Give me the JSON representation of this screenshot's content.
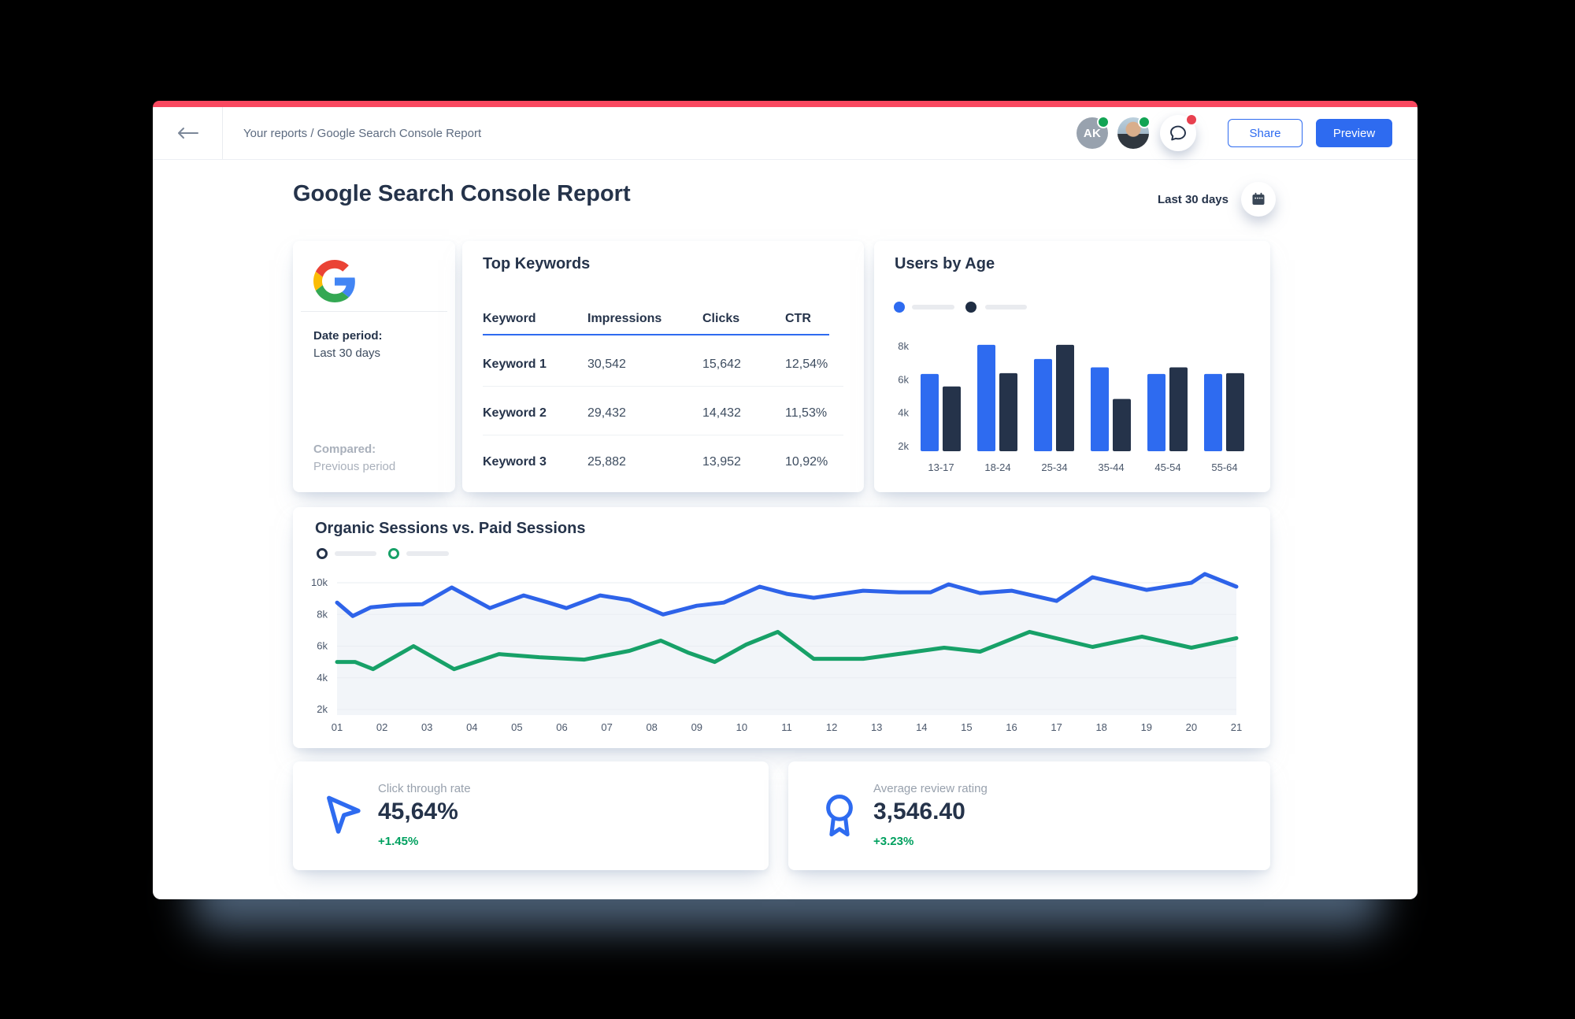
{
  "header": {
    "breadcrumb": "Your reports / Google Search Console Report",
    "avatars": [
      {
        "type": "initials",
        "initials": "AK",
        "status": "online"
      },
      {
        "type": "photo",
        "status": "online"
      }
    ],
    "chat_badge": "unread",
    "share_label": "Share",
    "preview_label": "Preview"
  },
  "page": {
    "title": "Google Search Console Report",
    "date_range_label": "Last 30 days"
  },
  "source_card": {
    "source": "Google",
    "date_period_label": "Date period:",
    "date_period_value": "Last 30 days",
    "compared_label": "Compared:",
    "compared_value": "Previous period"
  },
  "top_keywords": {
    "title": "Top Keywords",
    "columns": [
      "Keyword",
      "Impressions",
      "Clicks",
      "CTR"
    ],
    "rows": [
      {
        "keyword": "Keyword 1",
        "impressions": "30,542",
        "clicks": "15,642",
        "ctr": "12,54%"
      },
      {
        "keyword": "Keyword 2",
        "impressions": "29,432",
        "clicks": "14,432",
        "ctr": "11,53%"
      },
      {
        "keyword": "Keyword 3",
        "impressions": "25,882",
        "clicks": "13,952",
        "ctr": "10,92%"
      }
    ]
  },
  "stats": [
    {
      "icon": "cursor-icon",
      "label": "Click through rate",
      "value": "45,64%",
      "delta": "+1.45%"
    },
    {
      "icon": "award-icon",
      "label": "Average review rating",
      "value": "3,546.40",
      "delta": "+3.23%"
    }
  ],
  "colors": {
    "accent_red": "#f9485f",
    "primary_blue": "#2e6bf0",
    "navy": "#25334a",
    "green_line": "#17a168",
    "green_text": "#00a05f",
    "gray_text": "#98a1ad",
    "grid": "#e9edf2",
    "area_fill": "#f2f5f9",
    "legend_pill": "#e9ebef",
    "status_green": "#12a454",
    "status_red": "#e8404f"
  },
  "chart_data": [
    {
      "type": "bar",
      "title": "Users by Age",
      "categories": [
        "13-17",
        "18-24",
        "25-34",
        "35-44",
        "45-54",
        "55-64"
      ],
      "series": [
        {
          "name": "series-1",
          "color": "#2e6bf0",
          "values": [
            6350,
            8100,
            7250,
            6750,
            6350,
            6350
          ]
        },
        {
          "name": "series-2",
          "color": "#25334a",
          "values": [
            5600,
            6400,
            8100,
            4850,
            6750,
            6400
          ]
        }
      ],
      "y_ticks": [
        2000,
        4000,
        6000,
        8000
      ],
      "y_tick_labels": [
        "2k",
        "4k",
        "6k",
        "8k"
      ],
      "ylim": [
        1700,
        8600
      ],
      "grid": false,
      "legend": "placeholder-pills, top-left"
    },
    {
      "type": "line",
      "title": "Organic Sessions vs. Paid Sessions",
      "x_tick_labels": [
        "01",
        "02",
        "03",
        "04",
        "05",
        "06",
        "07",
        "08",
        "09",
        "10",
        "11",
        "12",
        "13",
        "14",
        "15",
        "16",
        "17",
        "18",
        "19",
        "20",
        "21"
      ],
      "xlim": [
        1,
        21
      ],
      "y_ticks": [
        2000,
        4000,
        6000,
        8000,
        10000
      ],
      "y_tick_labels": [
        "2k",
        "4k",
        "6k",
        "8k",
        "10k"
      ],
      "ylim": [
        1650,
        11000
      ],
      "grid": true,
      "legend": "placeholder-pills, top-left",
      "series": [
        {
          "name": "Organic Sessions",
          "color": "#2e63e9",
          "area": true,
          "area_fill": "#f2f5f9",
          "points": [
            [
              1,
              8750
            ],
            [
              1.35,
              7900
            ],
            [
              1.75,
              8450
            ],
            [
              2.3,
              8600
            ],
            [
              2.9,
              8650
            ],
            [
              3.55,
              9700
            ],
            [
              4.4,
              8400
            ],
            [
              5.15,
              9200
            ],
            [
              5.7,
              8750
            ],
            [
              6.1,
              8400
            ],
            [
              6.85,
              9200
            ],
            [
              7.5,
              8900
            ],
            [
              8.25,
              8000
            ],
            [
              9,
              8550
            ],
            [
              9.6,
              8750
            ],
            [
              10.4,
              9750
            ],
            [
              11,
              9300
            ],
            [
              11.6,
              9050
            ],
            [
              12.7,
              9500
            ],
            [
              13.5,
              9400
            ],
            [
              14.2,
              9400
            ],
            [
              14.6,
              9900
            ],
            [
              15.3,
              9350
            ],
            [
              16,
              9500
            ],
            [
              17,
              8850
            ],
            [
              17.8,
              10350
            ],
            [
              19,
              9550
            ],
            [
              20,
              10000
            ],
            [
              20.3,
              10550
            ],
            [
              21,
              9750
            ]
          ]
        },
        {
          "name": "Paid Sessions",
          "color": "#17a168",
          "area": false,
          "points": [
            [
              1,
              5000
            ],
            [
              1.4,
              5000
            ],
            [
              1.8,
              4550
            ],
            [
              2.7,
              6000
            ],
            [
              3.6,
              4550
            ],
            [
              4.6,
              5500
            ],
            [
              5.5,
              5300
            ],
            [
              6.5,
              5150
            ],
            [
              7.5,
              5700
            ],
            [
              8.2,
              6350
            ],
            [
              8.8,
              5600
            ],
            [
              9.4,
              5000
            ],
            [
              10.1,
              6100
            ],
            [
              10.8,
              6900
            ],
            [
              11.6,
              5200
            ],
            [
              12.7,
              5200
            ],
            [
              13.6,
              5550
            ],
            [
              14.5,
              5900
            ],
            [
              15.3,
              5650
            ],
            [
              16.4,
              6900
            ],
            [
              17.8,
              5950
            ],
            [
              18.9,
              6600
            ],
            [
              20,
              5900
            ],
            [
              21,
              6500
            ]
          ]
        }
      ]
    }
  ]
}
